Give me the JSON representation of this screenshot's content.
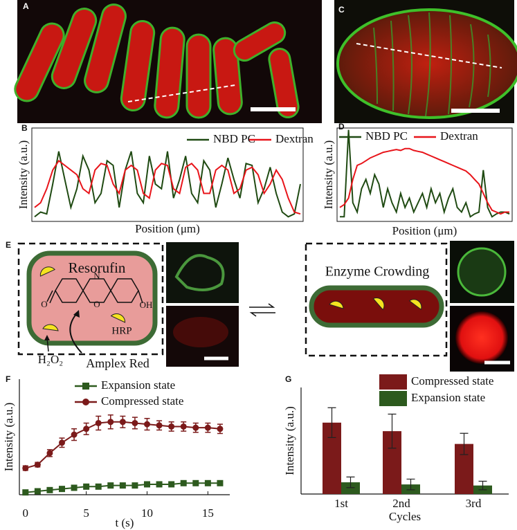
{
  "panel_labels": [
    "A",
    "B",
    "C",
    "D",
    "E",
    "F",
    "G"
  ],
  "panel_e": {
    "resorufin": "Resorufin",
    "atoms": [
      "N",
      "O",
      "O",
      "OH"
    ],
    "hrp": "HRP",
    "h2o2": "H₂O₂",
    "amplex": "Amplex Red",
    "crowding": "Enzyme Crowding"
  },
  "chart_data": [
    {
      "type": "line",
      "ylabel": "Intensity (a.u.)",
      "xlabel": "Position (μm)",
      "ylim": [
        0,
        1
      ],
      "series": [
        {
          "name": "NBD PC",
          "color": "#1f4a12",
          "values": [
            0.05,
            0.1,
            0.08,
            0.4,
            0.75,
            0.45,
            0.15,
            0.35,
            0.7,
            0.55,
            0.2,
            0.3,
            0.65,
            0.6,
            0.15,
            0.55,
            0.75,
            0.3,
            0.2,
            0.7,
            0.4,
            0.35,
            0.75,
            0.25,
            0.45,
            0.7,
            0.3,
            0.2,
            0.65,
            0.55,
            0.15,
            0.4,
            0.68,
            0.45,
            0.25,
            0.62,
            0.6,
            0.2,
            0.35,
            0.58,
            0.3,
            0.1,
            0.05,
            0.08,
            0.4
          ]
        },
        {
          "name": "Dextran",
          "color": "#e8141a",
          "values": [
            0.15,
            0.2,
            0.35,
            0.55,
            0.65,
            0.6,
            0.55,
            0.5,
            0.35,
            0.3,
            0.55,
            0.62,
            0.6,
            0.4,
            0.3,
            0.55,
            0.6,
            0.55,
            0.3,
            0.25,
            0.55,
            0.62,
            0.6,
            0.35,
            0.3,
            0.58,
            0.62,
            0.55,
            0.3,
            0.3,
            0.55,
            0.6,
            0.55,
            0.3,
            0.35,
            0.55,
            0.58,
            0.5,
            0.3,
            0.4,
            0.55,
            0.45,
            0.25,
            0.1,
            0.08
          ]
        }
      ]
    },
    {
      "type": "line",
      "ylabel": "Intensity (a.u.)",
      "xlabel": "Position (μm)",
      "ylim": [
        0,
        1
      ],
      "series": [
        {
          "name": "NBD PC",
          "color": "#1f4a12",
          "values": [
            0.05,
            0.05,
            0.98,
            0.2,
            0.1,
            0.35,
            0.45,
            0.3,
            0.5,
            0.4,
            0.15,
            0.35,
            0.2,
            0.1,
            0.3,
            0.15,
            0.25,
            0.1,
            0.2,
            0.3,
            0.15,
            0.35,
            0.2,
            0.3,
            0.1,
            0.25,
            0.35,
            0.15,
            0.1,
            0.2,
            0.05,
            0.08,
            0.1,
            0.55,
            0.15,
            0.05,
            0.08,
            0.1,
            0.1,
            0.08
          ]
        },
        {
          "name": "Dextran",
          "color": "#e8141a",
          "values": [
            0.15,
            0.18,
            0.25,
            0.45,
            0.6,
            0.62,
            0.65,
            0.68,
            0.7,
            0.72,
            0.74,
            0.75,
            0.76,
            0.77,
            0.76,
            0.78,
            0.78,
            0.76,
            0.75,
            0.74,
            0.72,
            0.7,
            0.68,
            0.66,
            0.64,
            0.62,
            0.6,
            0.58,
            0.56,
            0.54,
            0.5,
            0.45,
            0.4,
            0.3,
            0.2,
            0.12,
            0.1,
            0.08,
            0.1,
            0.1
          ]
        }
      ]
    },
    {
      "type": "errorline",
      "ylabel": "Intensity (a.u.)",
      "xlabel": "t (s)",
      "xlim": [
        -0.5,
        16.8
      ],
      "xticks": [
        0,
        5,
        10,
        15
      ],
      "ylim": [
        0,
        1
      ],
      "x": [
        0,
        1,
        2,
        3,
        4,
        5,
        6,
        7,
        8,
        9,
        10,
        11,
        12,
        13,
        14,
        15,
        16
      ],
      "series": [
        {
          "name": "Expansion state",
          "color": "#2d5a1e",
          "marker": "square",
          "values": [
            0.02,
            0.03,
            0.04,
            0.05,
            0.06,
            0.07,
            0.07,
            0.08,
            0.08,
            0.08,
            0.09,
            0.09,
            0.09,
            0.1,
            0.1,
            0.1,
            0.1
          ],
          "errors": [
            0.01,
            0.01,
            0.01,
            0.01,
            0.01,
            0.01,
            0.01,
            0.01,
            0.01,
            0.01,
            0.01,
            0.01,
            0.01,
            0.01,
            0.01,
            0.01,
            0.01
          ]
        },
        {
          "name": "Compressed state",
          "color": "#7b1a1a",
          "marker": "circle",
          "values": [
            0.23,
            0.26,
            0.36,
            0.45,
            0.52,
            0.57,
            0.62,
            0.63,
            0.63,
            0.62,
            0.61,
            0.6,
            0.59,
            0.59,
            0.58,
            0.58,
            0.57
          ],
          "errors": [
            0.02,
            0.02,
            0.03,
            0.04,
            0.05,
            0.05,
            0.06,
            0.06,
            0.05,
            0.05,
            0.05,
            0.04,
            0.04,
            0.04,
            0.04,
            0.04,
            0.04
          ]
        }
      ]
    },
    {
      "type": "bar",
      "ylabel": "Intensity (a.u.)",
      "xlabel": "Cycles",
      "ylim": [
        0,
        1
      ],
      "categories": [
        "1st",
        "2nd",
        "3rd"
      ],
      "series": [
        {
          "name": "Compressed state",
          "color": "#7b1a1a",
          "values": [
            0.67,
            0.59,
            0.47
          ],
          "errors": [
            0.14,
            0.16,
            0.1
          ]
        },
        {
          "name": "Expansion state",
          "color": "#2d5a1e",
          "values": [
            0.11,
            0.09,
            0.08
          ],
          "errors": [
            0.05,
            0.05,
            0.04
          ]
        }
      ]
    }
  ]
}
